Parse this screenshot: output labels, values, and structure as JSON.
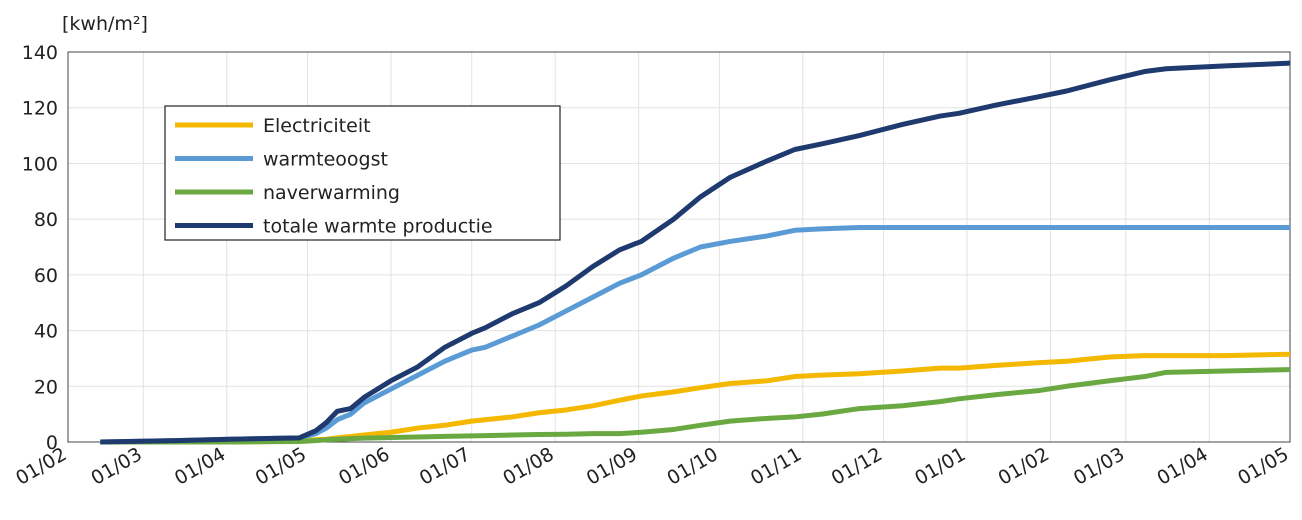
{
  "chart_data": {
    "type": "line",
    "y_label": "[kwh/m²]",
    "x": [
      12,
      40,
      60,
      86,
      92,
      96,
      100,
      105,
      110,
      120,
      130,
      140,
      150,
      155,
      165,
      175,
      185,
      195,
      205,
      213,
      225,
      235,
      246,
      260,
      270,
      280,
      294,
      302,
      310,
      324,
      331,
      345,
      361,
      371,
      387,
      400,
      408,
      430,
      454
    ],
    "xlim": [
      0,
      454
    ],
    "xticks": [
      {
        "value": 0,
        "label": "01/02"
      },
      {
        "value": 28,
        "label": "01/03"
      },
      {
        "value": 59,
        "label": "01/04"
      },
      {
        "value": 89,
        "label": "01/05"
      },
      {
        "value": 120,
        "label": "01/06"
      },
      {
        "value": 150,
        "label": "01/07"
      },
      {
        "value": 181,
        "label": "01/08"
      },
      {
        "value": 212,
        "label": "01/09"
      },
      {
        "value": 242,
        "label": "01/10"
      },
      {
        "value": 273,
        "label": "01/11"
      },
      {
        "value": 303,
        "label": "01/12"
      },
      {
        "value": 334,
        "label": "01/01"
      },
      {
        "value": 365,
        "label": "01/02"
      },
      {
        "value": 393,
        "label": "01/03"
      },
      {
        "value": 424,
        "label": "01/04"
      },
      {
        "value": 454,
        "label": "01/05"
      }
    ],
    "ylim": [
      0,
      140
    ],
    "yticks": [
      0,
      20,
      40,
      60,
      80,
      100,
      120,
      140
    ],
    "grid": true,
    "series": [
      {
        "name": "Electriciteit",
        "color": "#f5b800",
        "values": [
          0,
          0,
          0,
          0.3,
          0.8,
          1,
          1.5,
          2,
          2.5,
          3.5,
          5,
          6,
          7.5,
          8,
          9,
          10.5,
          11.5,
          13,
          15,
          16.5,
          18,
          19.5,
          21,
          22,
          23.5,
          24,
          24.5,
          25,
          25.5,
          26.5,
          26.5,
          27.5,
          28.5,
          29,
          30.5,
          31,
          31,
          31,
          31.5
        ]
      },
      {
        "name": "warmteoogst",
        "color": "#5b9bd5",
        "values": [
          0,
          0.5,
          1,
          1.5,
          3,
          5,
          8,
          10,
          14,
          19,
          24,
          29,
          33,
          34,
          38,
          42,
          47,
          52,
          57,
          60,
          66,
          70,
          72,
          74,
          76,
          76.5,
          77,
          77,
          77,
          77,
          77,
          77,
          77,
          77,
          77,
          77,
          77,
          77,
          77
        ]
      },
      {
        "name": "naverwarming",
        "color": "#6aa842",
        "values": [
          0,
          0,
          0,
          0.2,
          0.5,
          0.8,
          1,
          1.2,
          1.4,
          1.6,
          1.8,
          2,
          2.2,
          2.3,
          2.5,
          2.7,
          2.8,
          3,
          3,
          3.5,
          4.5,
          6,
          7.5,
          8.5,
          9,
          10,
          12,
          12.5,
          13,
          14.5,
          15.5,
          17,
          18.5,
          20,
          22,
          23.5,
          25,
          25.5,
          26
        ]
      },
      {
        "name": "totale warmte productie",
        "color": "#1f3a6e",
        "values": [
          0,
          0.5,
          1,
          1.5,
          4,
          7,
          11,
          12,
          16,
          22,
          27,
          34,
          39,
          41,
          46,
          50,
          56,
          63,
          69,
          72,
          80,
          88,
          95,
          101,
          105,
          107,
          110,
          112,
          114,
          117,
          118,
          121,
          124,
          126,
          130,
          133,
          134,
          135,
          136
        ]
      }
    ]
  }
}
